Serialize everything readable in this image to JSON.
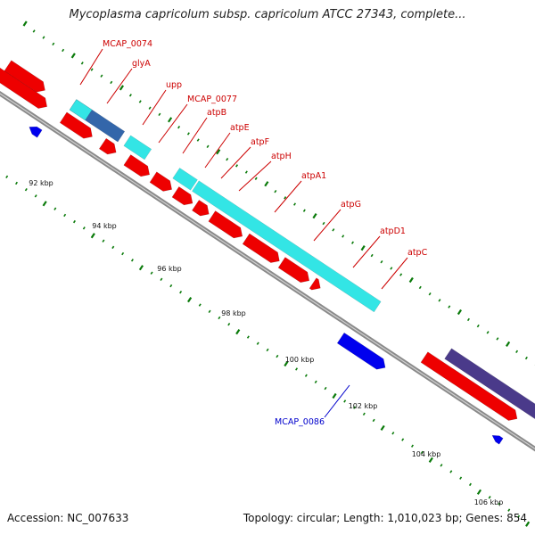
{
  "title": "Mycoplasma capricolum subsp. capricolum ATCC 27343, complete...",
  "footer": {
    "accession": "Accession: NC_007633",
    "summary": "Topology: circular; Length: 1,010,023 bp; Genes: 854"
  },
  "colors": {
    "forward_cds": "#ee0000",
    "reverse_cds": "#0000ee",
    "operon_light": "#33e5e5",
    "operon_dark": "#3366aa",
    "operon_purple": "#4a3a8a",
    "tick": "#0a7a0a",
    "backbone": "#8a8a8a",
    "label_forward": "#cc0000",
    "label_reverse": "#0000cc"
  },
  "scale_labels": [
    "92 kbp",
    "94 kbp",
    "96 kbp",
    "98 kbp",
    "100 kbp",
    "102 kbp",
    "104 kbp",
    "106 kbp"
  ],
  "gene_labels": [
    {
      "name": "MCAP_0074",
      "strand": "forward"
    },
    {
      "name": "glyA",
      "strand": "forward"
    },
    {
      "name": "upp",
      "strand": "forward"
    },
    {
      "name": "MCAP_0077",
      "strand": "forward"
    },
    {
      "name": "atpB",
      "strand": "forward"
    },
    {
      "name": "atpE",
      "strand": "forward"
    },
    {
      "name": "atpF",
      "strand": "forward"
    },
    {
      "name": "atpH",
      "strand": "forward"
    },
    {
      "name": "atpA1",
      "strand": "forward"
    },
    {
      "name": "atpG",
      "strand": "forward"
    },
    {
      "name": "atpD1",
      "strand": "forward"
    },
    {
      "name": "atpC",
      "strand": "forward"
    },
    {
      "name": "MCAP_0086",
      "strand": "reverse"
    }
  ]
}
